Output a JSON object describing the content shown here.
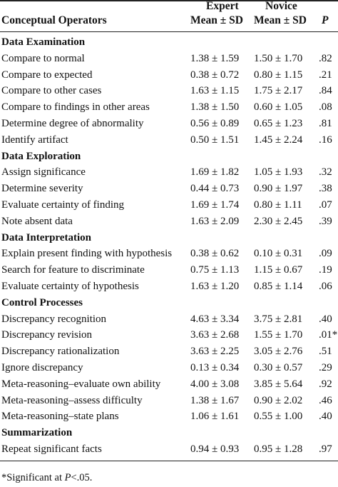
{
  "header": {
    "col1": "Conceptual Operators",
    "expert_line1": "Expert",
    "expert_line2": "Mean ± SD",
    "novice_line1": "Novice",
    "novice_line2": "Mean ± SD",
    "p": "P"
  },
  "rows": [
    {
      "type": "section",
      "label": "Data Examination"
    },
    {
      "type": "data",
      "label": "Compare to normal",
      "expert": "1.38 ± 1.59",
      "novice": "1.50 ± 1.70",
      "p": ".82"
    },
    {
      "type": "data",
      "label": "Compare to expected",
      "expert": "0.38 ± 0.72",
      "novice": "0.80 ± 1.15",
      "p": ".21"
    },
    {
      "type": "data",
      "label": "Compare to other cases",
      "expert": "1.63 ± 1.15",
      "novice": "1.75 ± 2.17",
      "p": ".84"
    },
    {
      "type": "data",
      "label": "Compare to findings in other areas",
      "expert": "1.38 ± 1.50",
      "novice": "0.60 ± 1.05",
      "p": ".08"
    },
    {
      "type": "data",
      "label": "Determine degree of abnormality",
      "expert": "0.56 ± 0.89",
      "novice": "0.65 ± 1.23",
      "p": ".81"
    },
    {
      "type": "data",
      "label": "Identify artifact",
      "expert": "0.50 ± 1.51",
      "novice": "1.45 ± 2.24",
      "p": ".16"
    },
    {
      "type": "section",
      "label": "Data Exploration"
    },
    {
      "type": "data",
      "label": "Assign significance",
      "expert": "1.69 ± 1.82",
      "novice": "1.05 ± 1.93",
      "p": ".32"
    },
    {
      "type": "data",
      "label": "Determine severity",
      "expert": "0.44 ± 0.73",
      "novice": "0.90 ± 1.97",
      "p": ".38"
    },
    {
      "type": "data",
      "label": "Evaluate certainty of finding",
      "expert": "1.69 ± 1.74",
      "novice": "0.80 ± 1.11",
      "p": ".07"
    },
    {
      "type": "data",
      "label": "Note absent data",
      "expert": "1.63 ± 2.09",
      "novice": "2.30 ± 2.45",
      "p": ".39"
    },
    {
      "type": "section",
      "label": "Data Interpretation"
    },
    {
      "type": "data",
      "label": "Explain present finding with hypothesis",
      "expert": "0.38 ± 0.62",
      "novice": "0.10 ± 0.31",
      "p": ".09"
    },
    {
      "type": "data",
      "label": "Search for feature to discriminate",
      "expert": "0.75 ± 1.13",
      "novice": "1.15 ± 0.67",
      "p": ".19"
    },
    {
      "type": "data",
      "label": "Evaluate certainty of hypothesis",
      "expert": "1.63 ± 1.20",
      "novice": "0.85 ± 1.14",
      "p": ".06"
    },
    {
      "type": "section",
      "label": "Control Processes"
    },
    {
      "type": "data",
      "label": "Discrepancy recognition",
      "expert": "4.63 ± 3.34",
      "novice": "3.75 ± 2.81",
      "p": ".40"
    },
    {
      "type": "data",
      "label": "Discrepancy revision",
      "expert": "3.63 ± 2.68",
      "novice": "1.55 ± 1.70",
      "p": ".01*"
    },
    {
      "type": "data",
      "label": "Discrepancy rationalization",
      "expert": "3.63 ± 2.25",
      "novice": "3.05 ± 2.76",
      "p": ".51"
    },
    {
      "type": "data",
      "label": "Ignore discrepancy",
      "expert": "0.13 ± 0.34",
      "novice": "0.30 ± 0.57",
      "p": ".29"
    },
    {
      "type": "data",
      "label": "Meta-reasoning–evaluate own ability",
      "expert": "4.00 ± 3.08",
      "novice": "3.85 ± 5.64",
      "p": ".92"
    },
    {
      "type": "data",
      "label": "Meta-reasoning–assess difficulty",
      "expert": "1.38 ± 1.67",
      "novice": "0.90 ± 2.02",
      "p": ".46"
    },
    {
      "type": "data",
      "label": "Meta-reasoning–state plans",
      "expert": "1.06 ± 1.61",
      "novice": "0.55 ± 1.00",
      "p": ".40"
    },
    {
      "type": "section",
      "label": "Summarization"
    },
    {
      "type": "data",
      "label": "Repeat significant facts",
      "expert": "0.94 ± 0.93",
      "novice": "0.95 ± 1.28",
      "p": ".97"
    }
  ],
  "footnote": {
    "prefix": "*Significant at ",
    "var": "P",
    "suffix": "<.05."
  }
}
